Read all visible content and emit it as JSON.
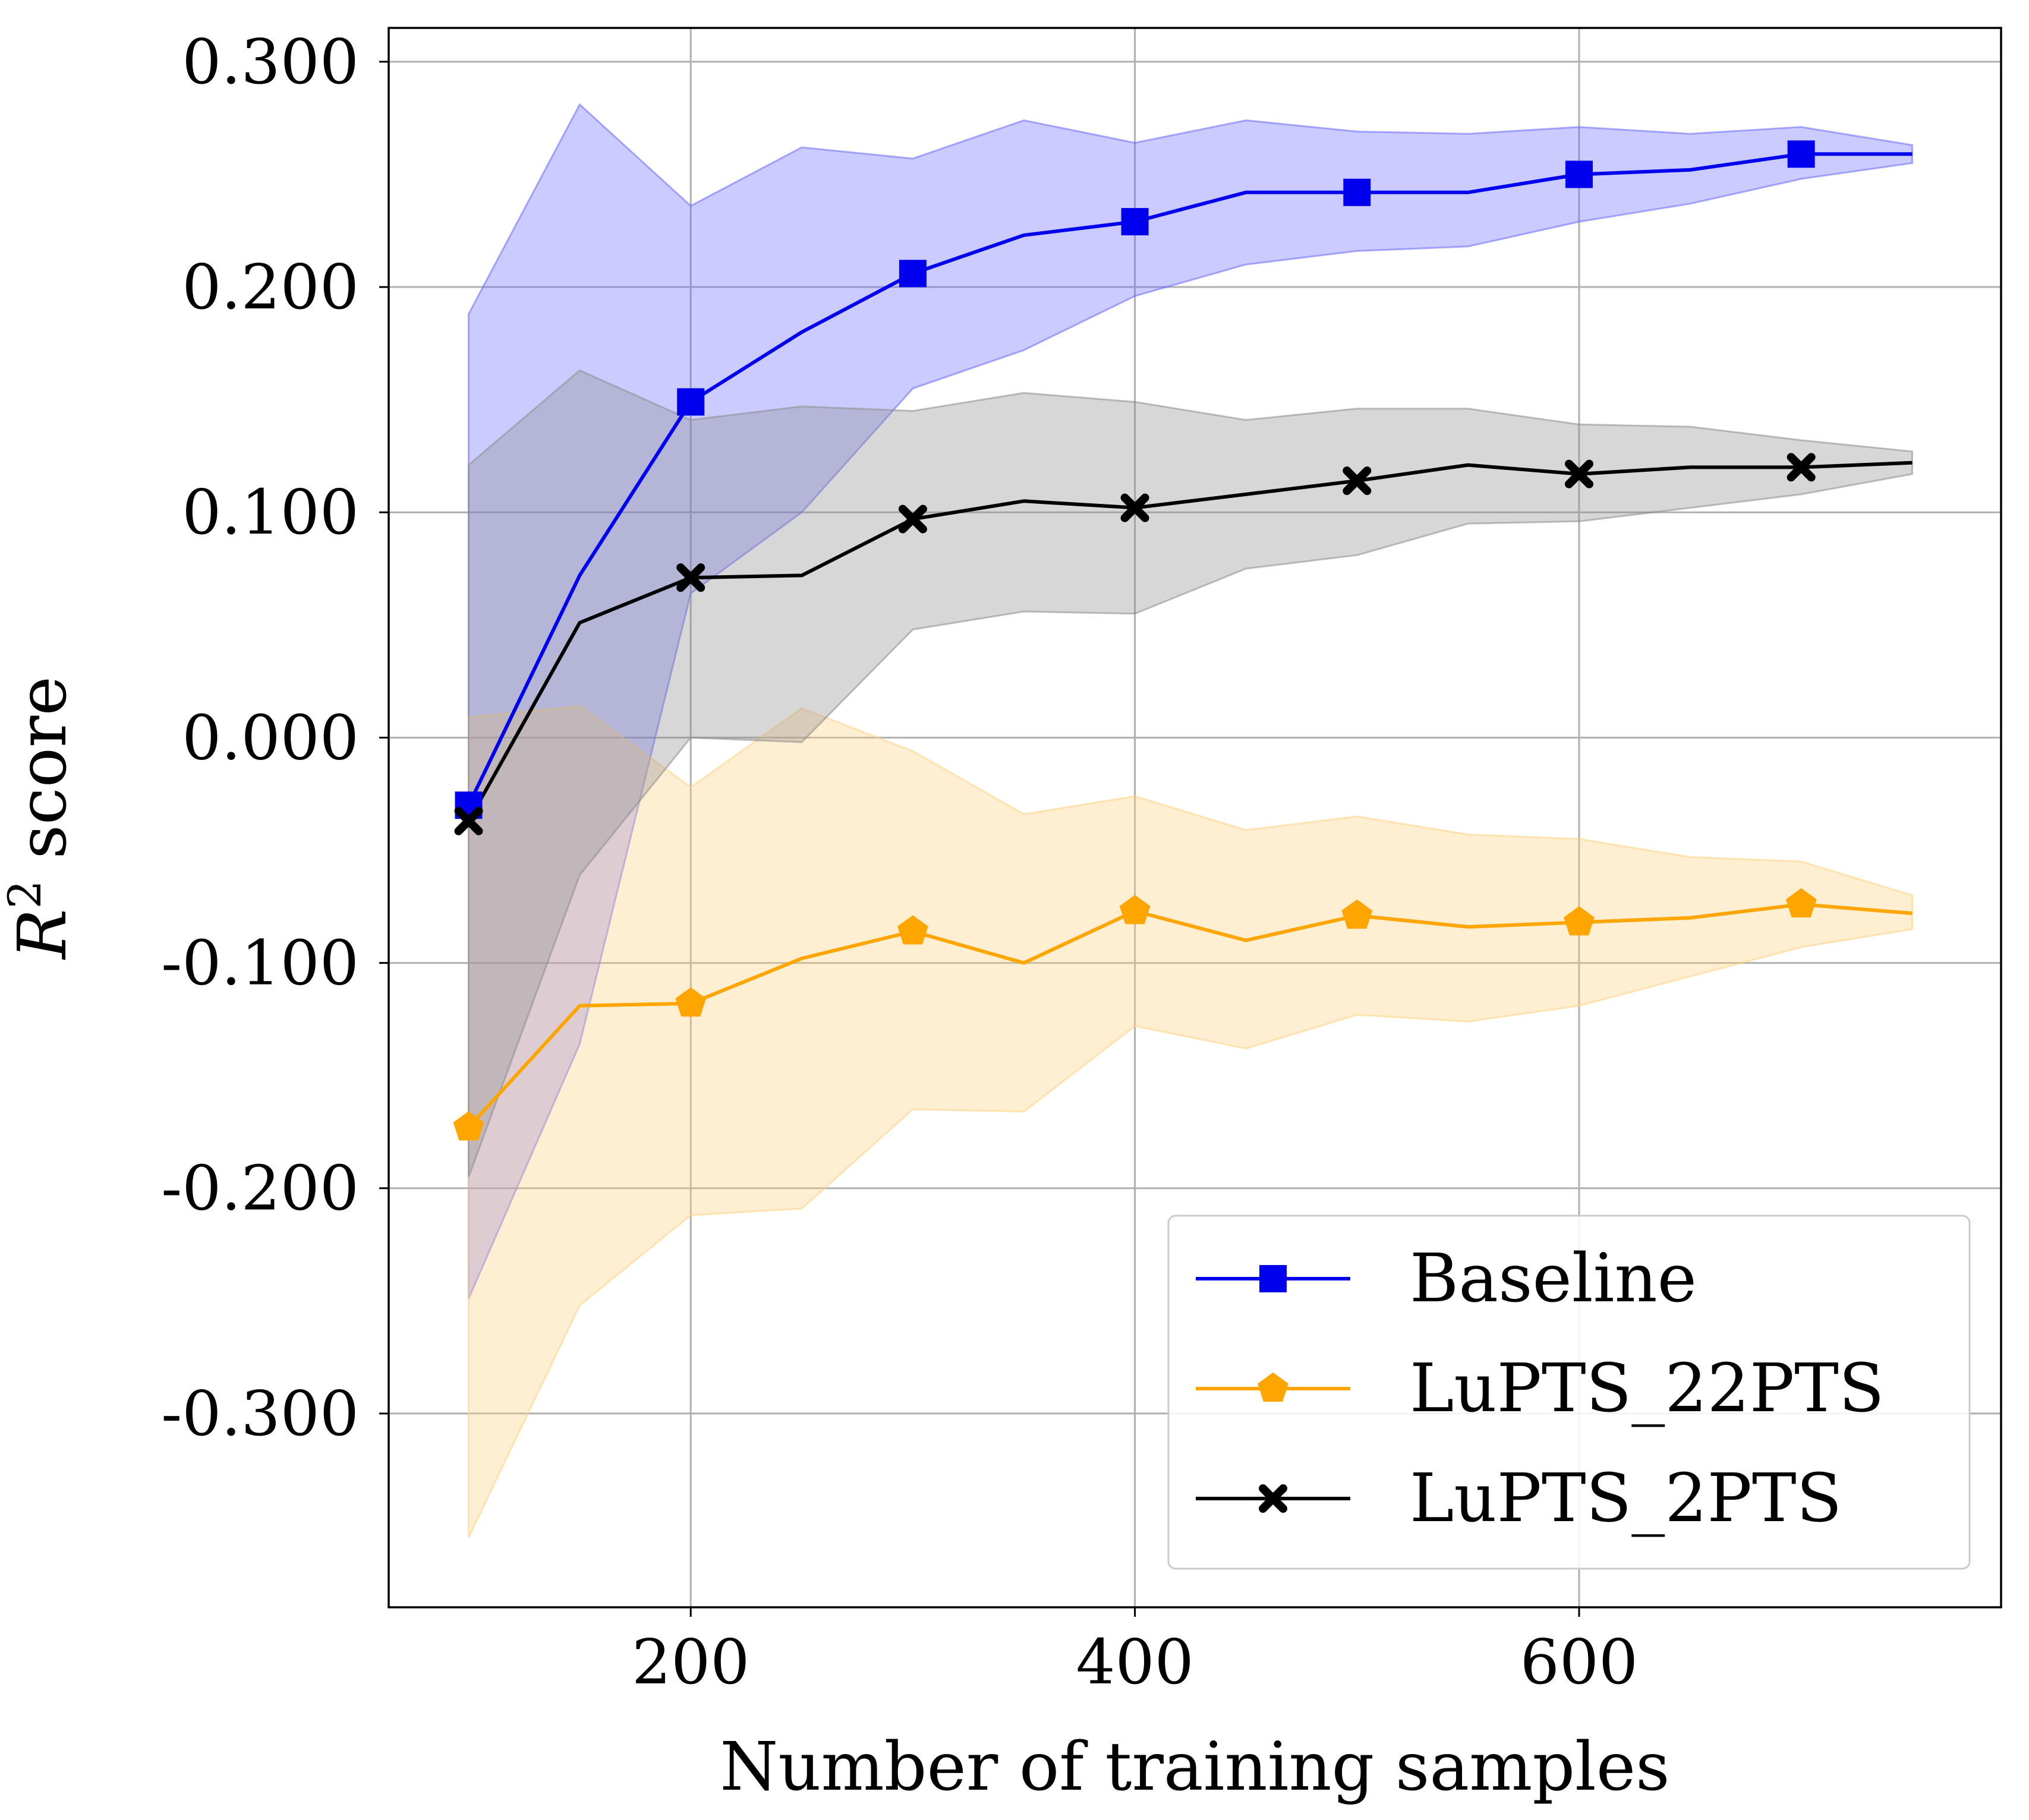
{
  "chart_data": {
    "type": "line",
    "title": "",
    "xlabel": "Number of training samples",
    "ylabel": {
      "base": "R",
      "superscript": "2",
      "suffix": " score"
    },
    "xlim": [
      64,
      790
    ],
    "ylim": [
      -0.386,
      0.315
    ],
    "grid": true,
    "legend_position": "lower-right",
    "x_ticks": [
      200,
      400,
      600
    ],
    "x_tick_labels": [
      "200",
      "400",
      "600"
    ],
    "y_ticks": [
      0.3,
      0.2,
      0.1,
      0.0,
      -0.1,
      -0.2,
      -0.3
    ],
    "y_tick_labels": [
      "0.300",
      "0.200",
      "0.100",
      "0.000",
      "-0.100",
      "-0.200",
      "-0.300"
    ],
    "x": [
      100,
      150,
      200,
      250,
      300,
      350,
      400,
      450,
      500,
      550,
      600,
      650,
      700,
      750
    ],
    "series": [
      {
        "name": "Baseline",
        "color": "#0000ee",
        "fill_color": "#6a6aff",
        "marker": "square",
        "marker_every": 2,
        "values": [
          -0.03,
          0.072,
          0.149,
          0.18,
          0.206,
          0.223,
          0.229,
          0.242,
          0.242,
          0.242,
          0.25,
          0.252,
          0.259,
          0.259
        ],
        "upper": [
          0.188,
          0.281,
          0.236,
          0.262,
          0.257,
          0.274,
          0.264,
          0.274,
          0.269,
          0.268,
          0.271,
          0.268,
          0.271,
          0.263
        ],
        "lower": [
          -0.249,
          -0.136,
          0.064,
          0.1,
          0.155,
          0.172,
          0.196,
          0.21,
          0.216,
          0.218,
          0.229,
          0.237,
          0.248,
          0.255
        ]
      },
      {
        "name": "LuPTS_22PTS",
        "color": "#ffa500",
        "fill_color": "#ffd27f",
        "marker": "pentagon",
        "marker_every": 2,
        "values": [
          -0.173,
          -0.119,
          -0.118,
          -0.098,
          -0.086,
          -0.1,
          -0.077,
          -0.09,
          -0.079,
          -0.084,
          -0.082,
          -0.08,
          -0.074,
          -0.078
        ],
        "upper": [
          0.009,
          0.014,
          -0.022,
          0.013,
          -0.006,
          -0.034,
          -0.026,
          -0.041,
          -0.035,
          -0.043,
          -0.045,
          -0.053,
          -0.055,
          -0.07
        ],
        "lower": [
          -0.355,
          -0.252,
          -0.212,
          -0.209,
          -0.165,
          -0.166,
          -0.128,
          -0.138,
          -0.123,
          -0.126,
          -0.119,
          -0.106,
          -0.093,
          -0.085
        ]
      },
      {
        "name": "LuPTS_2PTS",
        "color": "#000000",
        "fill_color": "#8c8c8c",
        "marker": "x",
        "marker_every": 2,
        "values": [
          -0.037,
          0.051,
          0.071,
          0.072,
          0.097,
          0.105,
          0.102,
          0.108,
          0.114,
          0.121,
          0.117,
          0.12,
          0.12,
          0.122
        ],
        "upper": [
          0.121,
          0.163,
          0.141,
          0.147,
          0.145,
          0.153,
          0.149,
          0.141,
          0.146,
          0.146,
          0.139,
          0.138,
          0.132,
          0.127
        ],
        "lower": [
          -0.195,
          -0.061,
          0.0,
          -0.002,
          0.048,
          0.056,
          0.055,
          0.075,
          0.081,
          0.095,
          0.096,
          0.102,
          0.108,
          0.117
        ]
      }
    ]
  }
}
